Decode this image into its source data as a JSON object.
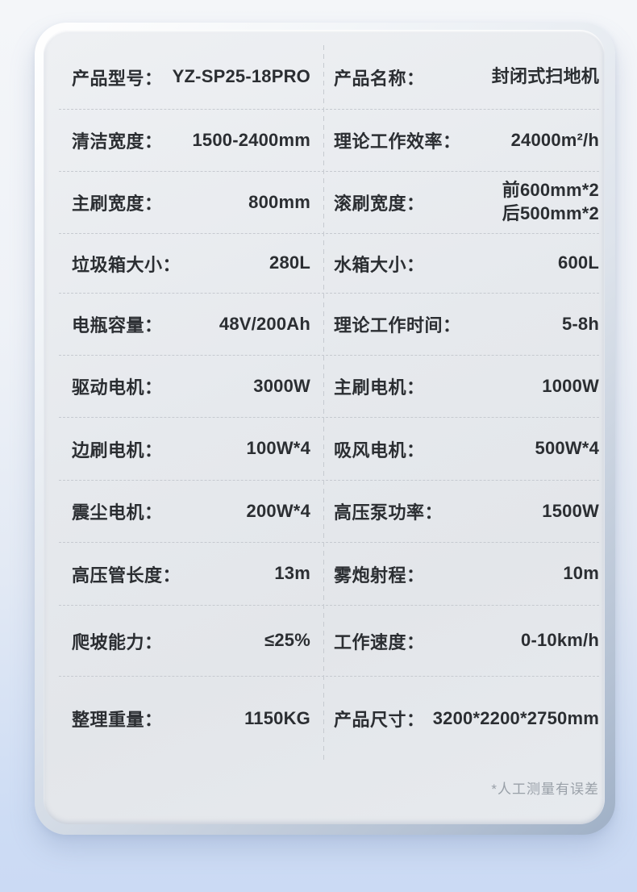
{
  "table": {
    "rows": [
      {
        "cells": [
          {
            "label": "产品型号：",
            "value": "YZ-SP25-18PRO"
          },
          {
            "label": "产品名称：",
            "value": "封闭式扫地机"
          }
        ]
      },
      {
        "cells": [
          {
            "label": "清洁宽度：",
            "value": "1500-2400mm"
          },
          {
            "label": "理论工作效率：",
            "value": "24000m²/h"
          }
        ]
      },
      {
        "cells": [
          {
            "label": "主刷宽度：",
            "value": "800mm"
          },
          {
            "label": "滚刷宽度：",
            "value": "前600mm*2\n后500mm*2"
          }
        ]
      },
      {
        "cells": [
          {
            "label": "垃圾箱大小：",
            "value": "280L"
          },
          {
            "label": "水箱大小：",
            "value": "600L"
          }
        ]
      },
      {
        "cells": [
          {
            "label": "电瓶容量：",
            "value": "48V/200Ah"
          },
          {
            "label": "理论工作时间：",
            "value": "5-8h"
          }
        ]
      },
      {
        "cells": [
          {
            "label": "驱动电机：",
            "value": "3000W"
          },
          {
            "label": "主刷电机：",
            "value": "1000W"
          }
        ]
      },
      {
        "cells": [
          {
            "label": "边刷电机：",
            "value": "100W*4"
          },
          {
            "label": "吸风电机：",
            "value": "500W*4"
          }
        ]
      },
      {
        "cells": [
          {
            "label": "震尘电机：",
            "value": "200W*4"
          },
          {
            "label": "高压泵功率：",
            "value": "1500W"
          }
        ]
      },
      {
        "cells": [
          {
            "label": "高压管长度：",
            "value": "13m"
          },
          {
            "label": "雾炮射程：",
            "value": "10m"
          }
        ]
      },
      {
        "cells": [
          {
            "label": "爬坡能力：",
            "value": "≤25%"
          },
          {
            "label": "工作速度：",
            "value": "0-10km/h"
          }
        ]
      },
      {
        "cells": [
          {
            "label": "整理重量：",
            "value": "1150KG"
          },
          {
            "label": "产品尺寸：",
            "value": "3200*2200*2750mm"
          }
        ]
      }
    ]
  },
  "footnote": "*人工测量有误差",
  "colors": {
    "page_bg_top": "#f4f6f9",
    "page_bg_bottom": "#cbdaf4",
    "card_surface": "#e5e8ec",
    "text": "#2b2e32",
    "divider": "#c6cad0",
    "footnote_text": "#99a0a8"
  }
}
